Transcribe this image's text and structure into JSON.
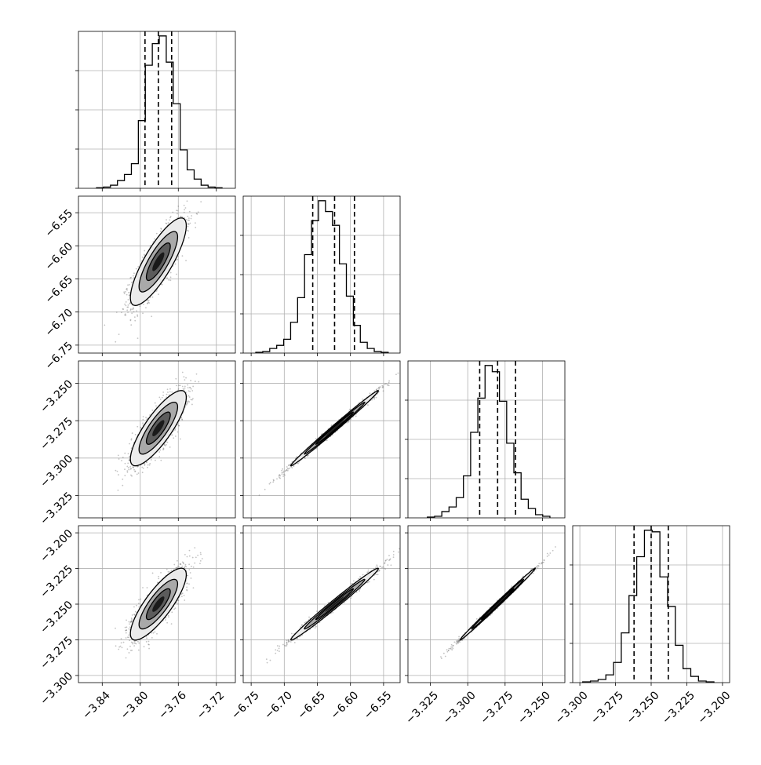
{
  "chart_data": {
    "type": "corner",
    "variables": [
      {
        "range": [
          -3.865,
          -3.7
        ],
        "ticks": [
          -3.84,
          -3.8,
          -3.76,
          -3.72
        ],
        "tick_labels": [
          "−3.84",
          "−3.80",
          "−3.76",
          "−3.72"
        ],
        "quantiles": [
          -3.795,
          -3.781,
          -3.767
        ],
        "hist": [
          0.004,
          0.008,
          0.02,
          0.05,
          0.09,
          0.16,
          0.44,
          0.8,
          0.94,
          0.99,
          0.82,
          0.55,
          0.25,
          0.12,
          0.06,
          0.02,
          0.008,
          0.004
        ],
        "hist_range": [
          -3.846,
          -3.714
        ]
      },
      {
        "range": [
          -6.762,
          -6.525
        ],
        "ticks": [
          -6.75,
          -6.7,
          -6.65,
          -6.6,
          -6.55
        ],
        "tick_labels": [
          "−6.75",
          "−6.70",
          "−6.65",
          "−6.60",
          "−6.55"
        ],
        "quantiles": [
          -6.657,
          -6.624,
          -6.594
        ],
        "hist": [
          0.005,
          0.01,
          0.03,
          0.05,
          0.09,
          0.2,
          0.36,
          0.64,
          0.86,
          0.99,
          0.92,
          0.83,
          0.58,
          0.37,
          0.18,
          0.07,
          0.03,
          0.01,
          0.005
        ],
        "hist_range": [
          -6.743,
          -6.543
        ]
      },
      {
        "range": [
          -3.34,
          -3.235
        ],
        "ticks": [
          -3.325,
          -3.3,
          -3.275,
          -3.25
        ],
        "tick_labels": [
          "−3.325",
          "−3.300",
          "−3.275",
          "−3.250"
        ],
        "quantiles": [
          -3.292,
          -3.28,
          -3.268
        ],
        "hist": [
          0.005,
          0.01,
          0.04,
          0.07,
          0.13,
          0.27,
          0.55,
          0.77,
          0.98,
          0.94,
          0.75,
          0.48,
          0.29,
          0.12,
          0.06,
          0.02,
          0.01
        ],
        "hist_range": [
          -3.327,
          -3.245
        ]
      },
      {
        "range": [
          -3.305,
          -3.195
        ],
        "ticks": [
          -3.3,
          -3.275,
          -3.25,
          -3.225,
          -3.2
        ],
        "tick_labels": [
          "−3.300",
          "−3.275",
          "−3.250",
          "−3.225",
          "−3.200"
        ],
        "quantiles": [
          -3.262,
          -3.25,
          -3.238
        ],
        "hist": [
          0.005,
          0.01,
          0.02,
          0.05,
          0.13,
          0.32,
          0.56,
          0.81,
          0.98,
          0.97,
          0.68,
          0.49,
          0.24,
          0.09,
          0.04,
          0.01,
          0.005
        ],
        "hist_range": [
          -3.298,
          -3.206
        ]
      }
    ],
    "correlations": {
      "1_0": 0.82,
      "2_0": 0.82,
      "2_1": 0.995,
      "3_0": 0.82,
      "3_1": 0.99,
      "3_2": 0.997
    },
    "samples_per_panel": 1600,
    "grid": true
  },
  "colors": {
    "line": "#000000",
    "grid": "#b0b0b0",
    "scatter": "#7a7a7a",
    "contour_fill": [
      "#ebebeb",
      "#a9a9a9",
      "#5c5c5c",
      "#1a1a1a"
    ]
  }
}
